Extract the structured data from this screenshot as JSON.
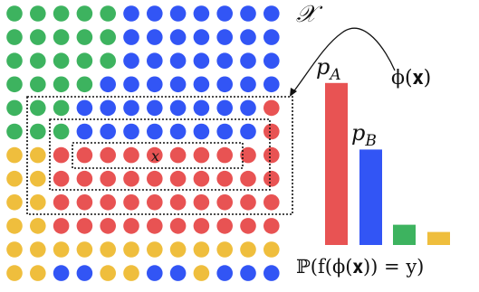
{
  "labels": {
    "space": "𝒳",
    "point": "x",
    "transform": "ϕ(𝐱)",
    "p_a": "p_A",
    "p_b": "p_B",
    "probability": "ℙ(f(ϕ(𝐱)) = y)"
  },
  "colors": {
    "green": "#3db35f",
    "blue": "#3255f5",
    "red": "#e85353",
    "yellow": "#efbe3d",
    "frame": "#111111"
  },
  "grid": {
    "rows": [
      "GGGGGBBBBBBB",
      "GGGGGBBBBBBB",
      "GGGGGBBBBBBB",
      "GGGGBBBBBBBB",
      "GGGBBBBBBBBR",
      "GGGBBBBBBBBR",
      "YYRRRRRRRRRR",
      "YYRRRRRRRRRR",
      "YYRRRRRRRRRR",
      "YYRRRRRRRRRR",
      "YYYYYYYYYYYY",
      "YYBBYYBBYBBB"
    ],
    "highlighted_point": [
      6,
      6
    ]
  },
  "chart_data": {
    "type": "bar",
    "categories": [
      "p_A",
      "p_B",
      "",
      ""
    ],
    "series_colors": [
      "#e85353",
      "#3255f5",
      "#3db35f",
      "#efbe3d"
    ],
    "values": [
      0.56,
      0.33,
      0.07,
      0.045
    ],
    "xlabel": "ℙ(f(ϕ(𝐱)) = y)"
  }
}
